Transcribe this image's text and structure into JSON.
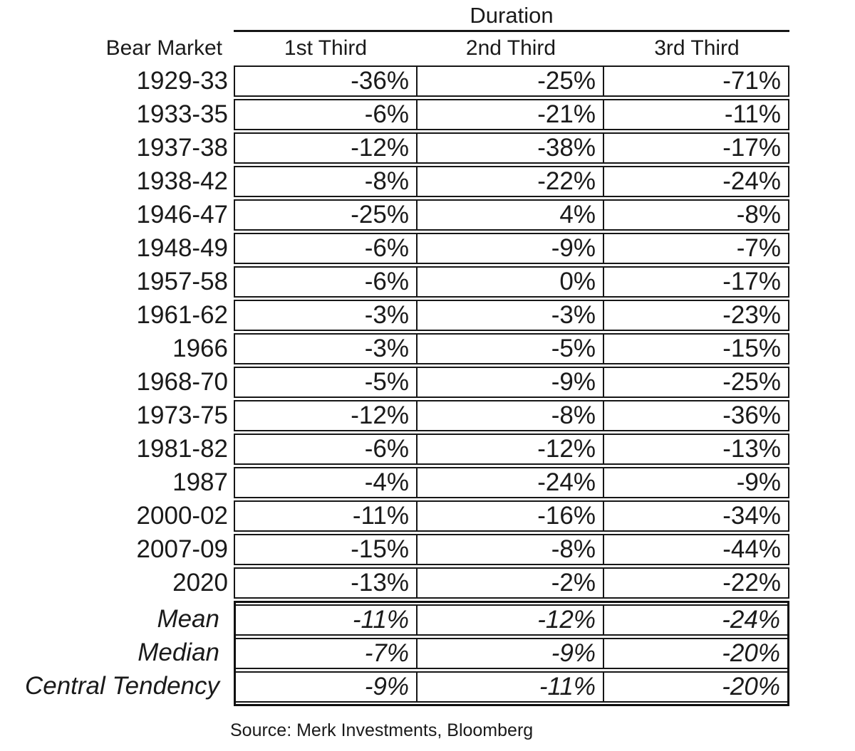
{
  "page": {
    "background": "#ffffff",
    "text_color": "#1a1a1a",
    "border_color": "#161616"
  },
  "table": {
    "group_header": "Duration",
    "columns": [
      "Bear Market",
      "1st Third",
      "2nd Third",
      "3rd Third"
    ],
    "rows": [
      {
        "label": "1929-33",
        "values": [
          "-36%",
          "-25%",
          "-71%"
        ]
      },
      {
        "label": "1933-35",
        "values": [
          "-6%",
          "-21%",
          "-11%"
        ]
      },
      {
        "label": "1937-38",
        "values": [
          "-12%",
          "-38%",
          "-17%"
        ]
      },
      {
        "label": "1938-42",
        "values": [
          "-8%",
          "-22%",
          "-24%"
        ]
      },
      {
        "label": "1946-47",
        "values": [
          "-25%",
          "4%",
          "-8%"
        ]
      },
      {
        "label": "1948-49",
        "values": [
          "-6%",
          "-9%",
          "-7%"
        ]
      },
      {
        "label": "1957-58",
        "values": [
          "-6%",
          "0%",
          "-17%"
        ]
      },
      {
        "label": "1961-62",
        "values": [
          "-3%",
          "-3%",
          "-23%"
        ]
      },
      {
        "label": "1966",
        "values": [
          "-3%",
          "-5%",
          "-15%"
        ]
      },
      {
        "label": "1968-70",
        "values": [
          "-5%",
          "-9%",
          "-25%"
        ]
      },
      {
        "label": "1973-75",
        "values": [
          "-12%",
          "-8%",
          "-36%"
        ]
      },
      {
        "label": "1981-82",
        "values": [
          "-6%",
          "-12%",
          "-13%"
        ]
      },
      {
        "label": "1987",
        "values": [
          "-4%",
          "-24%",
          "-9%"
        ]
      },
      {
        "label": "2000-02",
        "values": [
          "-11%",
          "-16%",
          "-34%"
        ]
      },
      {
        "label": "2007-09",
        "values": [
          "-15%",
          "-8%",
          "-44%"
        ]
      },
      {
        "label": "2020",
        "values": [
          "-13%",
          "-2%",
          "-22%"
        ]
      }
    ],
    "summary_rows": [
      {
        "label": "Mean",
        "values": [
          "-11%",
          "-12%",
          "-24%"
        ]
      },
      {
        "label": "Median",
        "values": [
          "-7%",
          "-9%",
          "-20%"
        ]
      },
      {
        "label": "Central Tendency",
        "values": [
          "-9%",
          "-11%",
          "-20%"
        ]
      }
    ]
  },
  "source_note": "Source: Merk Investments, Bloomberg",
  "chart_data": {
    "type": "table",
    "title": "Duration",
    "row_header": "Bear Market",
    "categories": [
      "1929-33",
      "1933-35",
      "1937-38",
      "1938-42",
      "1946-47",
      "1948-49",
      "1957-58",
      "1961-62",
      "1966",
      "1968-70",
      "1973-75",
      "1981-82",
      "1987",
      "2000-02",
      "2007-09",
      "2020"
    ],
    "series": [
      {
        "name": "1st Third",
        "values": [
          -36,
          -6,
          -12,
          -8,
          -25,
          -6,
          -6,
          -3,
          -3,
          -5,
          -12,
          -6,
          -4,
          -11,
          -15,
          -13
        ]
      },
      {
        "name": "2nd Third",
        "values": [
          -25,
          -21,
          -38,
          -22,
          4,
          -9,
          0,
          -3,
          -5,
          -9,
          -8,
          -12,
          -24,
          -16,
          -8,
          -2
        ]
      },
      {
        "name": "3rd Third",
        "values": [
          -71,
          -11,
          -17,
          -24,
          -8,
          -7,
          -17,
          -23,
          -15,
          -25,
          -36,
          -13,
          -9,
          -34,
          -44,
          -22
        ]
      }
    ],
    "summary": [
      {
        "name": "Mean",
        "values": [
          -11,
          -12,
          -24
        ]
      },
      {
        "name": "Median",
        "values": [
          -7,
          -9,
          -20
        ]
      },
      {
        "name": "Central Tendency",
        "values": [
          -9,
          -11,
          -20
        ]
      }
    ],
    "unit": "%",
    "source": "Source: Merk Investments, Bloomberg"
  }
}
